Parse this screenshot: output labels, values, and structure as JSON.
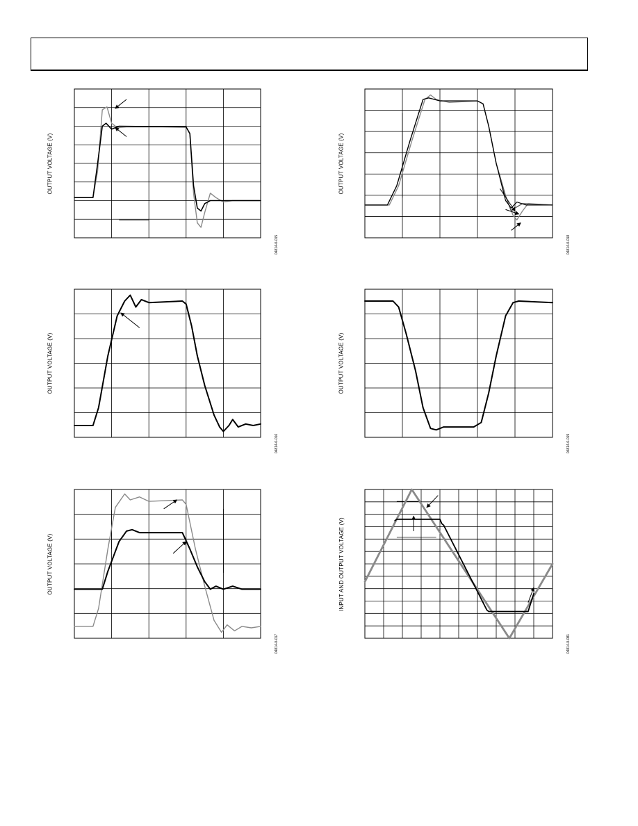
{
  "chart_data": [
    {
      "type": "line",
      "ylabel": "OUTPUT VOLTAGE (V)",
      "figure_id": "04814-0-015",
      "grid": {
        "cols": 5,
        "rows": 8
      },
      "series": [
        {
          "color": "#8a8a8a",
          "width": 1.4,
          "points": [
            [
              0,
              0.27
            ],
            [
              0.1,
              0.27
            ],
            [
              0.125,
              0.45
            ],
            [
              0.15,
              0.86
            ],
            [
              0.175,
              0.88
            ],
            [
              0.2,
              0.77
            ],
            [
              0.23,
              0.74
            ],
            [
              0.28,
              0.745
            ],
            [
              0.6,
              0.745
            ],
            [
              0.62,
              0.7
            ],
            [
              0.64,
              0.3
            ],
            [
              0.66,
              0.1
            ],
            [
              0.68,
              0.07
            ],
            [
              0.7,
              0.17
            ],
            [
              0.73,
              0.3
            ],
            [
              0.76,
              0.27
            ],
            [
              0.8,
              0.24
            ],
            [
              0.85,
              0.25
            ],
            [
              1,
              0.25
            ]
          ]
        },
        {
          "color": "#000000",
          "width": 1.6,
          "points": [
            [
              0,
              0.27
            ],
            [
              0.1,
              0.27
            ],
            [
              0.125,
              0.5
            ],
            [
              0.15,
              0.75
            ],
            [
              0.17,
              0.77
            ],
            [
              0.2,
              0.73
            ],
            [
              0.24,
              0.75
            ],
            [
              0.6,
              0.745
            ],
            [
              0.62,
              0.7
            ],
            [
              0.64,
              0.35
            ],
            [
              0.66,
              0.2
            ],
            [
              0.68,
              0.18
            ],
            [
              0.7,
              0.23
            ],
            [
              0.73,
              0.25
            ],
            [
              1,
              0.25
            ]
          ]
        }
      ],
      "arrows": [
        [
          [
            0.28,
            0.93
          ],
          [
            0.22,
            0.87
          ]
        ],
        [
          [
            0.28,
            0.68
          ],
          [
            0.22,
            0.74
          ]
        ]
      ],
      "lines": [
        [
          [
            0.24,
            0.12
          ],
          [
            0.4,
            0.12
          ]
        ]
      ]
    },
    {
      "type": "line",
      "ylabel": "OUTPUT VOLTAGE (V)",
      "figure_id": "04814-0-018",
      "grid": {
        "cols": 5,
        "rows": 7
      },
      "series": [
        {
          "color": "#8a8a8a",
          "width": 1.4,
          "points": [
            [
              0,
              0.22
            ],
            [
              0.13,
              0.22
            ],
            [
              0.18,
              0.35
            ],
            [
              0.25,
              0.65
            ],
            [
              0.32,
              0.93
            ],
            [
              0.35,
              0.96
            ],
            [
              0.38,
              0.93
            ],
            [
              0.45,
              0.91
            ],
            [
              0.6,
              0.92
            ],
            [
              0.63,
              0.9
            ],
            [
              0.66,
              0.75
            ],
            [
              0.7,
              0.5
            ],
            [
              0.75,
              0.28
            ],
            [
              0.79,
              0.15
            ],
            [
              0.81,
              0.12
            ],
            [
              0.84,
              0.18
            ],
            [
              0.87,
              0.23
            ],
            [
              1,
              0.22
            ]
          ]
        },
        {
          "color": "#555555",
          "width": 1.4,
          "points": [
            [
              0,
              0.22
            ],
            [
              0.12,
              0.22
            ],
            [
              0.17,
              0.35
            ],
            [
              0.24,
              0.65
            ],
            [
              0.31,
              0.93
            ],
            [
              0.34,
              0.94
            ],
            [
              0.4,
              0.92
            ],
            [
              0.6,
              0.92
            ],
            [
              0.63,
              0.9
            ],
            [
              0.66,
              0.75
            ],
            [
              0.7,
              0.5
            ],
            [
              0.75,
              0.28
            ],
            [
              0.78,
              0.18
            ],
            [
              0.8,
              0.2
            ],
            [
              0.84,
              0.23
            ],
            [
              1,
              0.22
            ]
          ]
        },
        {
          "color": "#000000",
          "width": 1.2,
          "points": [
            [
              0,
              0.22
            ],
            [
              0.12,
              0.22
            ],
            [
              0.17,
              0.35
            ],
            [
              0.24,
              0.65
            ],
            [
              0.31,
              0.93
            ],
            [
              0.34,
              0.94
            ],
            [
              0.4,
              0.92
            ],
            [
              0.6,
              0.92
            ],
            [
              0.63,
              0.9
            ],
            [
              0.66,
              0.75
            ],
            [
              0.7,
              0.5
            ],
            [
              0.75,
              0.25
            ],
            [
              0.78,
              0.2
            ],
            [
              0.81,
              0.24
            ],
            [
              0.86,
              0.22
            ],
            [
              1,
              0.22
            ]
          ]
        }
      ],
      "arrows": [
        [
          [
            0.72,
            0.33
          ],
          [
            0.8,
            0.18
          ]
        ],
        [
          [
            0.75,
            0.19
          ],
          [
            0.82,
            0.16
          ]
        ],
        [
          [
            0.78,
            0.05
          ],
          [
            0.83,
            0.1
          ]
        ]
      ],
      "lines": [
        [
          [
            0.2,
            0.84
          ],
          [
            0.2,
            0.27
          ]
        ]
      ]
    },
    {
      "type": "line",
      "ylabel": "OUTPUT VOLTAGE (V)",
      "figure_id": "04814-0-016",
      "grid": {
        "cols": 5,
        "rows": 6
      },
      "series": [
        {
          "color": "#000000",
          "width": 2,
          "points": [
            [
              0,
              0.08
            ],
            [
              0.1,
              0.08
            ],
            [
              0.13,
              0.2
            ],
            [
              0.18,
              0.55
            ],
            [
              0.23,
              0.82
            ],
            [
              0.27,
              0.92
            ],
            [
              0.3,
              0.96
            ],
            [
              0.33,
              0.88
            ],
            [
              0.36,
              0.93
            ],
            [
              0.4,
              0.91
            ],
            [
              0.58,
              0.92
            ],
            [
              0.6,
              0.9
            ],
            [
              0.63,
              0.75
            ],
            [
              0.66,
              0.55
            ],
            [
              0.7,
              0.35
            ],
            [
              0.75,
              0.15
            ],
            [
              0.78,
              0.07
            ],
            [
              0.8,
              0.04
            ],
            [
              0.83,
              0.08
            ],
            [
              0.85,
              0.12
            ],
            [
              0.88,
              0.07
            ],
            [
              0.92,
              0.09
            ],
            [
              0.96,
              0.08
            ],
            [
              1,
              0.09
            ]
          ]
        }
      ],
      "arrows": [
        [
          [
            0.35,
            0.74
          ],
          [
            0.25,
            0.84
          ]
        ]
      ],
      "lines": [
        [
          [
            0.2,
            0.83
          ],
          [
            0.2,
            0.6
          ]
        ]
      ]
    },
    {
      "type": "line",
      "ylabel": "OUTPUT VOLTAGE (V)",
      "figure_id": "04814-0-019",
      "grid": {
        "cols": 5,
        "rows": 6
      },
      "series": [
        {
          "color": "#000000",
          "width": 2,
          "points": [
            [
              0,
              0.92
            ],
            [
              0.15,
              0.92
            ],
            [
              0.18,
              0.88
            ],
            [
              0.22,
              0.7
            ],
            [
              0.27,
              0.45
            ],
            [
              0.31,
              0.2
            ],
            [
              0.35,
              0.06
            ],
            [
              0.38,
              0.05
            ],
            [
              0.42,
              0.07
            ],
            [
              0.58,
              0.07
            ],
            [
              0.62,
              0.1
            ],
            [
              0.66,
              0.3
            ],
            [
              0.7,
              0.55
            ],
            [
              0.75,
              0.82
            ],
            [
              0.79,
              0.91
            ],
            [
              0.82,
              0.92
            ],
            [
              1,
              0.91
            ]
          ]
        }
      ],
      "arrows": [],
      "lines": [
        [
          [
            0.2,
            0.66
          ],
          [
            0.2,
            0.17
          ]
        ]
      ]
    },
    {
      "type": "line",
      "ylabel": "OUTPUT VOLTAGE (V)",
      "figure_id": "04814-0-017",
      "grid": {
        "cols": 5,
        "rows": 6
      },
      "series": [
        {
          "color": "#8a8a8a",
          "width": 1.4,
          "points": [
            [
              0,
              0.08
            ],
            [
              0.1,
              0.08
            ],
            [
              0.13,
              0.2
            ],
            [
              0.18,
              0.6
            ],
            [
              0.22,
              0.88
            ],
            [
              0.27,
              0.97
            ],
            [
              0.3,
              0.93
            ],
            [
              0.35,
              0.95
            ],
            [
              0.4,
              0.92
            ],
            [
              0.58,
              0.93
            ],
            [
              0.6,
              0.9
            ],
            [
              0.65,
              0.6
            ],
            [
              0.7,
              0.35
            ],
            [
              0.75,
              0.12
            ],
            [
              0.79,
              0.04
            ],
            [
              0.82,
              0.09
            ],
            [
              0.86,
              0.05
            ],
            [
              0.9,
              0.08
            ],
            [
              0.95,
              0.07
            ],
            [
              1,
              0.08
            ]
          ]
        },
        {
          "color": "#000000",
          "width": 2,
          "points": [
            [
              0,
              0.33
            ],
            [
              0.15,
              0.33
            ],
            [
              0.18,
              0.45
            ],
            [
              0.24,
              0.65
            ],
            [
              0.28,
              0.72
            ],
            [
              0.31,
              0.73
            ],
            [
              0.35,
              0.71
            ],
            [
              0.58,
              0.71
            ],
            [
              0.62,
              0.6
            ],
            [
              0.66,
              0.48
            ],
            [
              0.7,
              0.38
            ],
            [
              0.73,
              0.33
            ],
            [
              0.76,
              0.35
            ],
            [
              0.8,
              0.33
            ],
            [
              0.85,
              0.35
            ],
            [
              0.9,
              0.33
            ],
            [
              1,
              0.33
            ]
          ]
        }
      ],
      "arrows": [
        [
          [
            0.48,
            0.87
          ],
          [
            0.55,
            0.93
          ]
        ],
        [
          [
            0.53,
            0.57
          ],
          [
            0.6,
            0.65
          ]
        ]
      ],
      "lines": [
        [
          [
            0.2,
            0.86
          ],
          [
            0.2,
            0.6
          ]
        ],
        [
          [
            0.8,
            0.87
          ],
          [
            0.8,
            0.44
          ]
        ]
      ]
    },
    {
      "type": "line",
      "ylabel": "INPUT AND OUTPUT VOLTAGE (V)",
      "figure_id": "04814-0-081",
      "grid": {
        "cols": 10,
        "rows": 12
      },
      "series": [
        {
          "color": "#8a8a8a",
          "width": 2.8,
          "points": [
            [
              0,
              0.38
            ],
            [
              0.25,
              1
            ],
            [
              0.77,
              0
            ],
            [
              1,
              0.5
            ]
          ]
        },
        {
          "color": "#000000",
          "width": 1.8,
          "points": [
            [
              0.16,
              0.79
            ],
            [
              0.17,
              0.8
            ],
            [
              0.4,
              0.8
            ],
            [
              0.41,
              0.77
            ],
            [
              0.42,
              0.76
            ],
            [
              0.65,
              0.19
            ],
            [
              0.66,
              0.18
            ],
            [
              0.87,
              0.18
            ],
            [
              0.88,
              0.22
            ],
            [
              0.9,
              0.3
            ]
          ]
        }
      ],
      "arrows": [
        [
          [
            0.39,
            0.96
          ],
          [
            0.33,
            0.88
          ]
        ],
        [
          [
            0.26,
            0.72
          ],
          [
            0.26,
            0.82
          ]
        ],
        [
          [
            0.87,
            0.24
          ],
          [
            0.9,
            0.34
          ]
        ]
      ],
      "lines": [
        [
          [
            0.17,
            0.92
          ],
          [
            0.3,
            0.92
          ]
        ],
        [
          [
            0.17,
            0.68
          ],
          [
            0.38,
            0.68
          ]
        ]
      ]
    }
  ]
}
